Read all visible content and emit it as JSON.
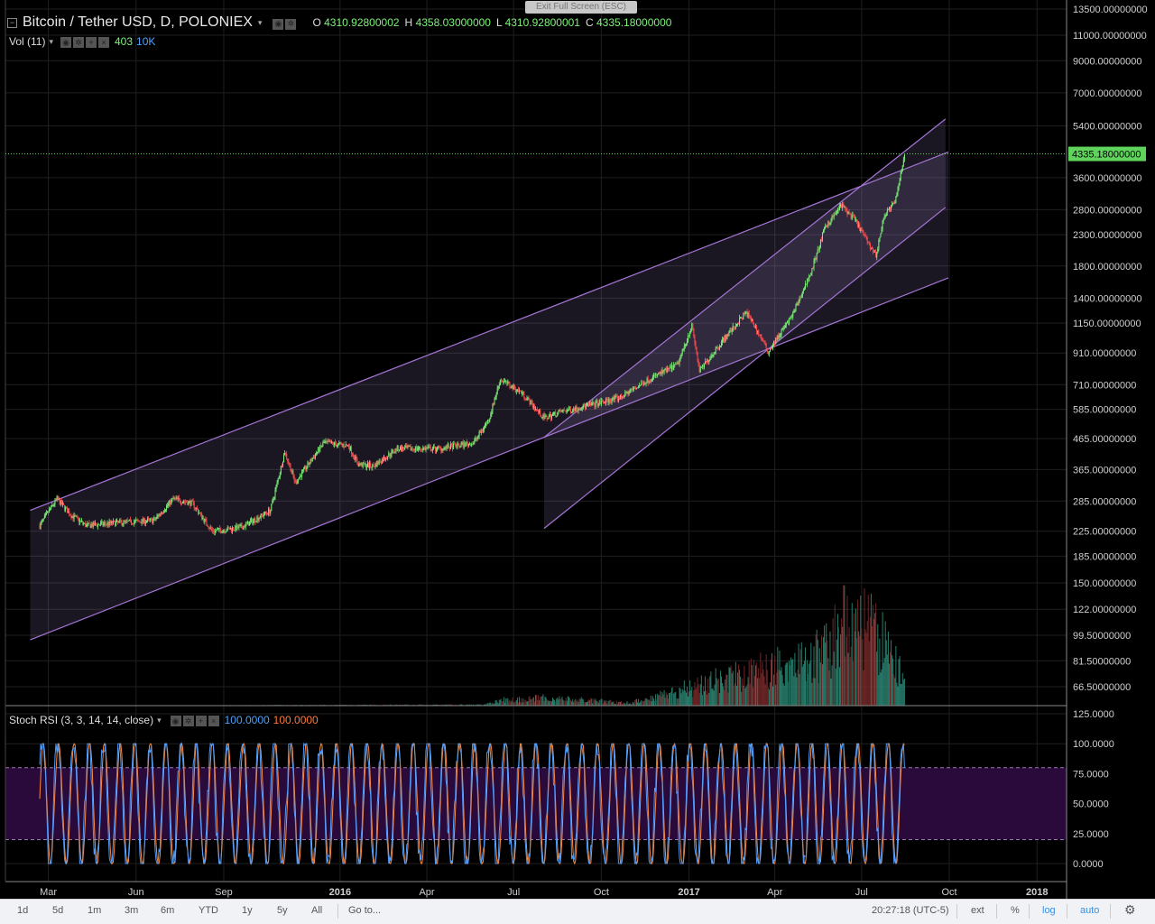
{
  "header": {
    "title": "Bitcoin / Tether USD, D, POLONIEX",
    "collapse_glyph": "−",
    "caret": "▾",
    "ohlc": {
      "o_label": "O",
      "o_value": "4310.92800002",
      "h_label": "H",
      "h_value": "4358.03000000",
      "l_label": "L",
      "l_value": "4310.92800001",
      "c_label": "C",
      "c_value": "4335.18000000"
    }
  },
  "exit_fullscreen": "Exit Full Screen (ESC)",
  "volume_indicator": {
    "label": "Vol (11)",
    "caret": "▾",
    "value1": "403",
    "value2": "10K"
  },
  "stoch_indicator": {
    "label": "Stoch RSI (3, 3, 14, 14, close)",
    "caret": "▾",
    "k_value": "100.0000",
    "d_value": "100.0000"
  },
  "price_axis": {
    "ticks": [
      {
        "value": 13500,
        "label": "13500.00000000"
      },
      {
        "value": 11000,
        "label": "11000.00000000"
      },
      {
        "value": 9000,
        "label": "9000.00000000"
      },
      {
        "value": 7000,
        "label": "7000.00000000"
      },
      {
        "value": 5400,
        "label": "5400.00000000"
      },
      {
        "value": 3600,
        "label": "3600.00000000"
      },
      {
        "value": 2800,
        "label": "2800.00000000"
      },
      {
        "value": 2300,
        "label": "2300.00000000"
      },
      {
        "value": 1800,
        "label": "1800.00000000"
      },
      {
        "value": 1400,
        "label": "1400.00000000"
      },
      {
        "value": 1150,
        "label": "1150.00000000"
      },
      {
        "value": 910,
        "label": "910.00000000"
      },
      {
        "value": 710,
        "label": "710.00000000"
      },
      {
        "value": 585,
        "label": "585.00000000"
      },
      {
        "value": 465,
        "label": "465.00000000"
      },
      {
        "value": 365,
        "label": "365.00000000"
      },
      {
        "value": 285,
        "label": "285.00000000"
      },
      {
        "value": 225,
        "label": "225.00000000"
      },
      {
        "value": 185,
        "label": "185.00000000"
      },
      {
        "value": 150,
        "label": "150.00000000"
      },
      {
        "value": 122,
        "label": "122.00000000"
      },
      {
        "value": 99.5,
        "label": "99.50000000"
      },
      {
        "value": 81.5,
        "label": "81.50000000"
      },
      {
        "value": 66.5,
        "label": "66.50000000"
      }
    ],
    "last_price": 4335.18,
    "last_price_label": "4335.18000000"
  },
  "stoch_axis": {
    "ticks": [
      {
        "value": 125,
        "label": "125.0000"
      },
      {
        "value": 100,
        "label": "100.0000"
      },
      {
        "value": 75,
        "label": "75.0000"
      },
      {
        "value": 50,
        "label": "50.0000"
      },
      {
        "value": 25,
        "label": "25.0000"
      },
      {
        "value": 0,
        "label": "0.0000"
      }
    ],
    "band_upper": 80,
    "band_lower": 20
  },
  "time_axis": {
    "ticks": [
      {
        "date": "2015-03-01",
        "label": "Mar",
        "bold": false
      },
      {
        "date": "2015-06-01",
        "label": "Jun",
        "bold": false
      },
      {
        "date": "2015-09-01",
        "label": "Sep",
        "bold": false
      },
      {
        "date": "2016-01-01",
        "label": "2016",
        "bold": true
      },
      {
        "date": "2016-04-01",
        "label": "Apr",
        "bold": false
      },
      {
        "date": "2016-07-01",
        "label": "Jul",
        "bold": false
      },
      {
        "date": "2016-10-01",
        "label": "Oct",
        "bold": false
      },
      {
        "date": "2017-01-01",
        "label": "2017",
        "bold": true
      },
      {
        "date": "2017-04-01",
        "label": "Apr",
        "bold": false
      },
      {
        "date": "2017-07-01",
        "label": "Jul",
        "bold": false
      },
      {
        "date": "2017-10-01",
        "label": "Oct",
        "bold": false
      },
      {
        "date": "2018-01-01",
        "label": "2018",
        "bold": true
      }
    ]
  },
  "chart_data": {
    "type": "candlestick",
    "symbol": "Bitcoin / Tether USD",
    "interval": "D",
    "exchange": "POLONIEX",
    "y_scale": "log",
    "ylim": [
      60,
      14500
    ],
    "xlim": [
      "2015-01-15",
      "2018-02-01"
    ],
    "grid": true,
    "colors": {
      "up": "#7ef17a",
      "down": "#ff4d4d",
      "channel": "#a575d6",
      "volume": "#2c8a77",
      "stoch_k": "#4b9bff",
      "stoch_d": "#ff8a3d",
      "stoch_band": "#2a0a3a"
    },
    "price_path": [
      {
        "date": "2015-02-20",
        "price": 235
      },
      {
        "date": "2015-03-10",
        "price": 290
      },
      {
        "date": "2015-03-25",
        "price": 255
      },
      {
        "date": "2015-04-10",
        "price": 235
      },
      {
        "date": "2015-05-10",
        "price": 240
      },
      {
        "date": "2015-06-20",
        "price": 245
      },
      {
        "date": "2015-07-10",
        "price": 290
      },
      {
        "date": "2015-07-30",
        "price": 280
      },
      {
        "date": "2015-08-20",
        "price": 225
      },
      {
        "date": "2015-09-20",
        "price": 232
      },
      {
        "date": "2015-10-20",
        "price": 265
      },
      {
        "date": "2015-11-04",
        "price": 420
      },
      {
        "date": "2015-11-15",
        "price": 330
      },
      {
        "date": "2015-12-15",
        "price": 450
      },
      {
        "date": "2016-01-10",
        "price": 440
      },
      {
        "date": "2016-01-20",
        "price": 380
      },
      {
        "date": "2016-02-05",
        "price": 375
      },
      {
        "date": "2016-03-01",
        "price": 430
      },
      {
        "date": "2016-04-15",
        "price": 430
      },
      {
        "date": "2016-05-20",
        "price": 450
      },
      {
        "date": "2016-06-05",
        "price": 540
      },
      {
        "date": "2016-06-17",
        "price": 740
      },
      {
        "date": "2016-07-10",
        "price": 665
      },
      {
        "date": "2016-08-02",
        "price": 545
      },
      {
        "date": "2016-08-20",
        "price": 575
      },
      {
        "date": "2016-09-20",
        "price": 605
      },
      {
        "date": "2016-10-20",
        "price": 640
      },
      {
        "date": "2016-11-20",
        "price": 740
      },
      {
        "date": "2016-12-20",
        "price": 830
      },
      {
        "date": "2017-01-04",
        "price": 1130
      },
      {
        "date": "2017-01-12",
        "price": 790
      },
      {
        "date": "2017-02-05",
        "price": 1000
      },
      {
        "date": "2017-03-02",
        "price": 1250
      },
      {
        "date": "2017-03-10",
        "price": 1140
      },
      {
        "date": "2017-03-25",
        "price": 920
      },
      {
        "date": "2017-04-20",
        "price": 1230
      },
      {
        "date": "2017-05-10",
        "price": 1750
      },
      {
        "date": "2017-05-24",
        "price": 2450
      },
      {
        "date": "2017-06-10",
        "price": 2900
      },
      {
        "date": "2017-06-25",
        "price": 2550
      },
      {
        "date": "2017-07-16",
        "price": 1950
      },
      {
        "date": "2017-07-25",
        "price": 2700
      },
      {
        "date": "2017-08-05",
        "price": 2950
      },
      {
        "date": "2017-08-12",
        "price": 3850
      },
      {
        "date": "2017-08-15",
        "price": 4335
      }
    ],
    "volume_profile": [
      {
        "date": "2015-02-20",
        "level": 0.0
      },
      {
        "date": "2016-06-01",
        "level": 0.01
      },
      {
        "date": "2016-06-20",
        "level": 0.06
      },
      {
        "date": "2016-08-02",
        "level": 0.08
      },
      {
        "date": "2016-11-01",
        "level": 0.03
      },
      {
        "date": "2017-01-04",
        "level": 0.2
      },
      {
        "date": "2017-03-10",
        "level": 0.35
      },
      {
        "date": "2017-05-24",
        "level": 0.55
      },
      {
        "date": "2017-06-12",
        "level": 0.9
      },
      {
        "date": "2017-07-16",
        "level": 0.75
      },
      {
        "date": "2017-08-15",
        "level": 0.3
      }
    ],
    "channels": [
      {
        "points": [
          {
            "date": "2015-02-10",
            "price": 265
          },
          {
            "date": "2017-09-30",
            "price": 4400
          },
          {
            "date": "2017-09-30",
            "price": 1640
          },
          {
            "date": "2015-02-10",
            "price": 96
          }
        ]
      },
      {
        "points": [
          {
            "date": "2016-08-02",
            "price": 470
          },
          {
            "date": "2017-09-27",
            "price": 5700
          },
          {
            "date": "2017-09-27",
            "price": 2850
          },
          {
            "date": "2016-08-02",
            "price": 230
          }
        ]
      }
    ]
  },
  "bottom_bar": {
    "ranges": [
      "1d",
      "5d",
      "1m",
      "3m",
      "6m",
      "YTD",
      "1y",
      "5y",
      "All"
    ],
    "goto": "Go to...",
    "time": "20:27:18 (UTC-5)",
    "ext": "ext",
    "percent": "%",
    "log": "log",
    "auto": "auto",
    "settings_icon": "gear-icon"
  }
}
